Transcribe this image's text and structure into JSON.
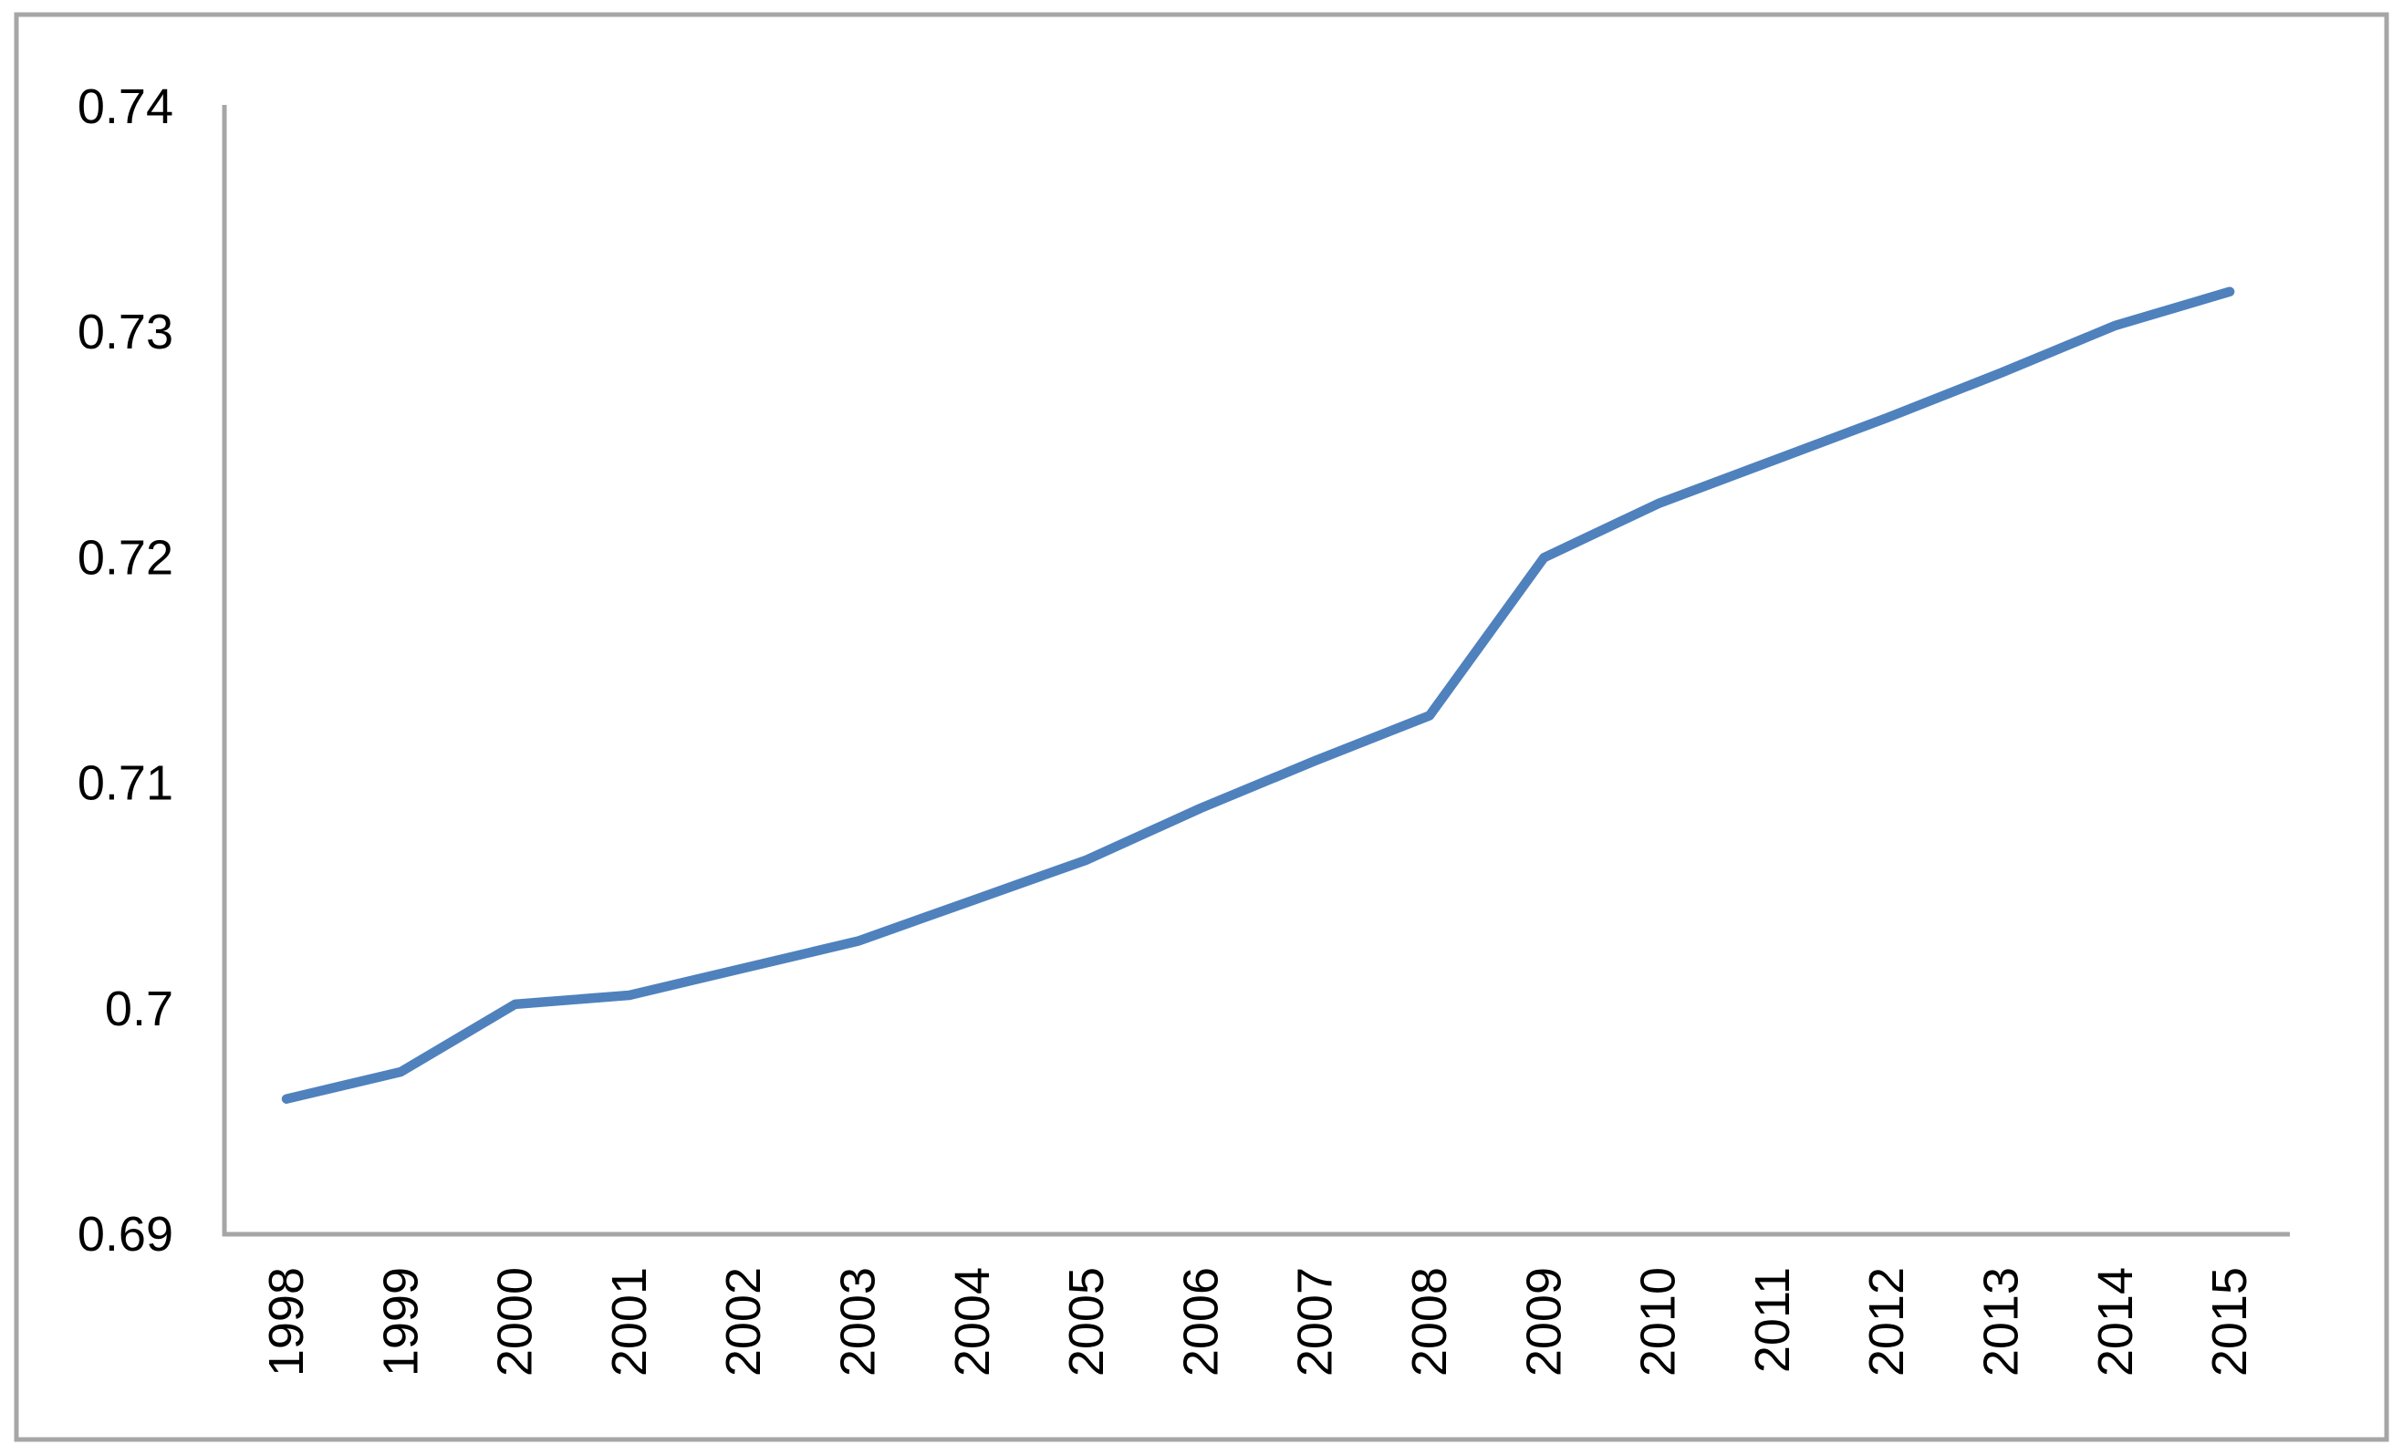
{
  "chart_data": {
    "type": "line",
    "title": "",
    "subtitle": "",
    "xlabel": "",
    "ylabel": "",
    "categories": [
      "1998",
      "1999",
      "2000",
      "2001",
      "2002",
      "2003",
      "2004",
      "2005",
      "2006",
      "2007",
      "2008",
      "2009",
      "2010",
      "2011",
      "2012",
      "2013",
      "2014",
      "2015"
    ],
    "series": [
      {
        "name": "series-1",
        "values": [
          0.696,
          0.6972,
          0.7002,
          0.7006,
          0.7018,
          0.703,
          0.7048,
          0.7066,
          0.7089,
          0.711,
          0.713,
          0.72,
          0.7224,
          0.7243,
          0.7262,
          0.7282,
          0.7303,
          0.7318
        ]
      }
    ],
    "ylim": [
      0.69,
      0.74
    ],
    "ytick_labels": [
      "0.69",
      "0.7",
      "0.71",
      "0.72",
      "0.73",
      "0.74"
    ],
    "ytick_values": [
      0.69,
      0.7,
      0.71,
      0.72,
      0.73,
      0.74
    ],
    "grid": false,
    "legend_position": "none",
    "colors": {
      "line": "#4F81BD",
      "axis": "#A6A6A6",
      "border": "#A6A6A6",
      "text": "#000000",
      "background": "#FFFFFF"
    }
  }
}
